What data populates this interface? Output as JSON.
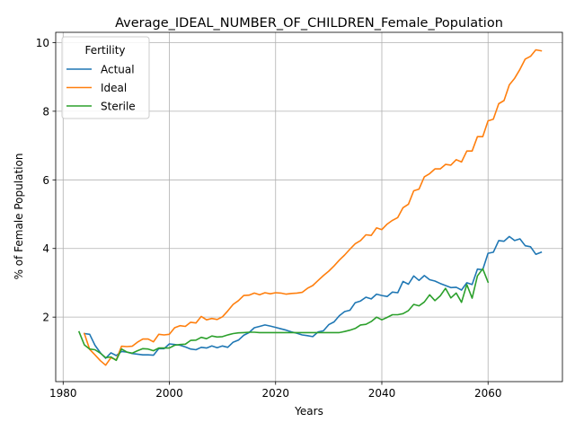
{
  "chart_data": {
    "type": "line",
    "title": "Average_IDEAL_NUMBER_OF_CHILDREN_Female_Population",
    "xlabel": "Years",
    "ylabel": "% of Female Population",
    "xlim": [
      1978.6,
      1974.0
    ],
    "ylim": [
      0.12,
      10.3
    ],
    "xticks": [
      1980,
      2000,
      2020,
      2040,
      2060
    ],
    "yticks": [
      2,
      4,
      6,
      8,
      10
    ],
    "grid": true,
    "legend": {
      "title": "Fertility",
      "placement": "upper-left"
    },
    "series": [
      {
        "name": "Actual",
        "color": "#1f77b4",
        "points": [
          [
            1984,
            1.52
          ],
          [
            1985,
            1.5
          ],
          [
            1986,
            1.18
          ],
          [
            1987,
            0.96
          ],
          [
            1988,
            0.8
          ],
          [
            1989,
            0.96
          ],
          [
            1990,
            0.88
          ],
          [
            1991,
            1.0
          ],
          [
            1992,
            0.98
          ],
          [
            1993,
            0.94
          ],
          [
            1994,
            0.92
          ],
          [
            1995,
            0.9
          ],
          [
            1996,
            0.9
          ],
          [
            1997,
            0.89
          ],
          [
            1998,
            1.08
          ],
          [
            1999,
            1.08
          ],
          [
            2000,
            1.22
          ],
          [
            2001,
            1.2
          ],
          [
            2002,
            1.18
          ],
          [
            2003,
            1.13
          ],
          [
            2004,
            1.07
          ],
          [
            2005,
            1.05
          ],
          [
            2006,
            1.12
          ],
          [
            2007,
            1.1
          ],
          [
            2008,
            1.16
          ],
          [
            2009,
            1.11
          ],
          [
            2010,
            1.16
          ],
          [
            2011,
            1.12
          ],
          [
            2012,
            1.27
          ],
          [
            2013,
            1.33
          ],
          [
            2014,
            1.47
          ],
          [
            2015,
            1.55
          ],
          [
            2016,
            1.69
          ],
          [
            2017,
            1.73
          ],
          [
            2018,
            1.77
          ],
          [
            2019,
            1.74
          ],
          [
            2020,
            1.7
          ],
          [
            2021,
            1.66
          ],
          [
            2022,
            1.62
          ],
          [
            2023,
            1.57
          ],
          [
            2024,
            1.53
          ],
          [
            2025,
            1.48
          ],
          [
            2026,
            1.46
          ],
          [
            2027,
            1.43
          ],
          [
            2028,
            1.57
          ],
          [
            2029,
            1.6
          ],
          [
            2030,
            1.78
          ],
          [
            2031,
            1.86
          ],
          [
            2032,
            2.04
          ],
          [
            2033,
            2.16
          ],
          [
            2034,
            2.2
          ],
          [
            2035,
            2.42
          ],
          [
            2036,
            2.47
          ],
          [
            2037,
            2.58
          ],
          [
            2038,
            2.53
          ],
          [
            2039,
            2.67
          ],
          [
            2040,
            2.63
          ],
          [
            2041,
            2.6
          ],
          [
            2042,
            2.73
          ],
          [
            2043,
            2.71
          ],
          [
            2044,
            3.04
          ],
          [
            2045,
            2.96
          ],
          [
            2046,
            3.2
          ],
          [
            2047,
            3.07
          ],
          [
            2048,
            3.21
          ],
          [
            2049,
            3.09
          ],
          [
            2050,
            3.05
          ],
          [
            2051,
            2.98
          ],
          [
            2052,
            2.92
          ],
          [
            2053,
            2.86
          ],
          [
            2054,
            2.87
          ],
          [
            2055,
            2.79
          ],
          [
            2056,
            3.0
          ],
          [
            2057,
            2.95
          ],
          [
            2058,
            3.4
          ],
          [
            2059,
            3.38
          ],
          [
            2060,
            3.86
          ],
          [
            2061,
            3.89
          ],
          [
            2062,
            4.23
          ],
          [
            2063,
            4.21
          ],
          [
            2064,
            4.35
          ],
          [
            2065,
            4.23
          ],
          [
            2066,
            4.28
          ],
          [
            2067,
            4.08
          ],
          [
            2068,
            4.05
          ],
          [
            2069,
            3.83
          ],
          [
            2070,
            3.89
          ]
        ]
      },
      {
        "name": "Ideal",
        "color": "#ff7f0e",
        "points": [
          [
            1984,
            1.52
          ],
          [
            1985,
            1.06
          ],
          [
            1986,
            0.9
          ],
          [
            1987,
            0.73
          ],
          [
            1988,
            0.6
          ],
          [
            1989,
            0.82
          ],
          [
            1990,
            0.75
          ],
          [
            1991,
            1.15
          ],
          [
            1992,
            1.14
          ],
          [
            1993,
            1.15
          ],
          [
            1994,
            1.27
          ],
          [
            1995,
            1.36
          ],
          [
            1996,
            1.36
          ],
          [
            1997,
            1.28
          ],
          [
            1998,
            1.5
          ],
          [
            1999,
            1.48
          ],
          [
            2000,
            1.5
          ],
          [
            2001,
            1.69
          ],
          [
            2002,
            1.75
          ],
          [
            2003,
            1.73
          ],
          [
            2004,
            1.85
          ],
          [
            2005,
            1.83
          ],
          [
            2006,
            2.02
          ],
          [
            2007,
            1.92
          ],
          [
            2008,
            1.96
          ],
          [
            2009,
            1.93
          ],
          [
            2010,
            2.01
          ],
          [
            2011,
            2.18
          ],
          [
            2012,
            2.37
          ],
          [
            2013,
            2.48
          ],
          [
            2014,
            2.63
          ],
          [
            2015,
            2.64
          ],
          [
            2016,
            2.7
          ],
          [
            2017,
            2.65
          ],
          [
            2018,
            2.71
          ],
          [
            2019,
            2.68
          ],
          [
            2020,
            2.71
          ],
          [
            2021,
            2.7
          ],
          [
            2022,
            2.67
          ],
          [
            2023,
            2.69
          ],
          [
            2024,
            2.7
          ],
          [
            2025,
            2.72
          ],
          [
            2026,
            2.84
          ],
          [
            2027,
            2.92
          ],
          [
            2028,
            3.07
          ],
          [
            2029,
            3.21
          ],
          [
            2030,
            3.34
          ],
          [
            2031,
            3.49
          ],
          [
            2032,
            3.66
          ],
          [
            2033,
            3.81
          ],
          [
            2034,
            3.98
          ],
          [
            2035,
            4.14
          ],
          [
            2036,
            4.23
          ],
          [
            2037,
            4.4
          ],
          [
            2038,
            4.38
          ],
          [
            2039,
            4.6
          ],
          [
            2040,
            4.55
          ],
          [
            2041,
            4.71
          ],
          [
            2042,
            4.82
          ],
          [
            2043,
            4.9
          ],
          [
            2044,
            5.19
          ],
          [
            2045,
            5.29
          ],
          [
            2046,
            5.68
          ],
          [
            2047,
            5.73
          ],
          [
            2048,
            6.09
          ],
          [
            2049,
            6.18
          ],
          [
            2050,
            6.32
          ],
          [
            2051,
            6.32
          ],
          [
            2052,
            6.45
          ],
          [
            2053,
            6.43
          ],
          [
            2054,
            6.59
          ],
          [
            2055,
            6.52
          ],
          [
            2056,
            6.84
          ],
          [
            2057,
            6.84
          ],
          [
            2058,
            7.26
          ],
          [
            2059,
            7.26
          ],
          [
            2060,
            7.72
          ],
          [
            2061,
            7.77
          ],
          [
            2062,
            8.22
          ],
          [
            2063,
            8.31
          ],
          [
            2064,
            8.77
          ],
          [
            2065,
            8.96
          ],
          [
            2066,
            9.22
          ],
          [
            2067,
            9.52
          ],
          [
            2068,
            9.6
          ],
          [
            2069,
            9.79
          ],
          [
            2070,
            9.76
          ]
        ]
      },
      {
        "name": "Sterile",
        "color": "#2ca02c",
        "points": [
          [
            1983,
            1.57
          ],
          [
            1984,
            1.19
          ],
          [
            1985,
            1.07
          ],
          [
            1986,
            1.05
          ],
          [
            1987,
            0.95
          ],
          [
            1988,
            0.82
          ],
          [
            1989,
            0.84
          ],
          [
            1990,
            0.74
          ],
          [
            1991,
            1.07
          ],
          [
            1992,
            0.98
          ],
          [
            1993,
            0.95
          ],
          [
            1994,
            1.02
          ],
          [
            1995,
            1.08
          ],
          [
            1996,
            1.07
          ],
          [
            1997,
            1.02
          ],
          [
            1998,
            1.1
          ],
          [
            1999,
            1.1
          ],
          [
            2000,
            1.1
          ],
          [
            2001,
            1.18
          ],
          [
            2002,
            1.2
          ],
          [
            2003,
            1.21
          ],
          [
            2004,
            1.32
          ],
          [
            2005,
            1.33
          ],
          [
            2006,
            1.41
          ],
          [
            2007,
            1.37
          ],
          [
            2008,
            1.45
          ],
          [
            2009,
            1.42
          ],
          [
            2010,
            1.43
          ],
          [
            2011,
            1.48
          ],
          [
            2012,
            1.52
          ],
          [
            2013,
            1.54
          ],
          [
            2014,
            1.55
          ],
          [
            2015,
            1.56
          ],
          [
            2016,
            1.56
          ],
          [
            2017,
            1.55
          ],
          [
            2018,
            1.55
          ],
          [
            2019,
            1.55
          ],
          [
            2020,
            1.55
          ],
          [
            2021,
            1.55
          ],
          [
            2022,
            1.55
          ],
          [
            2023,
            1.55
          ],
          [
            2024,
            1.55
          ],
          [
            2025,
            1.55
          ],
          [
            2026,
            1.55
          ],
          [
            2027,
            1.55
          ],
          [
            2028,
            1.55
          ],
          [
            2029,
            1.55
          ],
          [
            2030,
            1.55
          ],
          [
            2031,
            1.55
          ],
          [
            2032,
            1.55
          ],
          [
            2033,
            1.58
          ],
          [
            2034,
            1.62
          ],
          [
            2035,
            1.67
          ],
          [
            2036,
            1.77
          ],
          [
            2037,
            1.79
          ],
          [
            2038,
            1.87
          ],
          [
            2039,
            2.0
          ],
          [
            2040,
            1.92
          ],
          [
            2041,
            1.99
          ],
          [
            2042,
            2.07
          ],
          [
            2043,
            2.07
          ],
          [
            2044,
            2.1
          ],
          [
            2045,
            2.19
          ],
          [
            2046,
            2.37
          ],
          [
            2047,
            2.33
          ],
          [
            2048,
            2.44
          ],
          [
            2049,
            2.65
          ],
          [
            2050,
            2.48
          ],
          [
            2051,
            2.62
          ],
          [
            2052,
            2.84
          ],
          [
            2053,
            2.56
          ],
          [
            2054,
            2.7
          ],
          [
            2055,
            2.43
          ],
          [
            2056,
            2.95
          ],
          [
            2057,
            2.55
          ],
          [
            2058,
            3.2
          ],
          [
            2059,
            3.41
          ],
          [
            2060,
            3.02
          ]
        ]
      }
    ]
  }
}
